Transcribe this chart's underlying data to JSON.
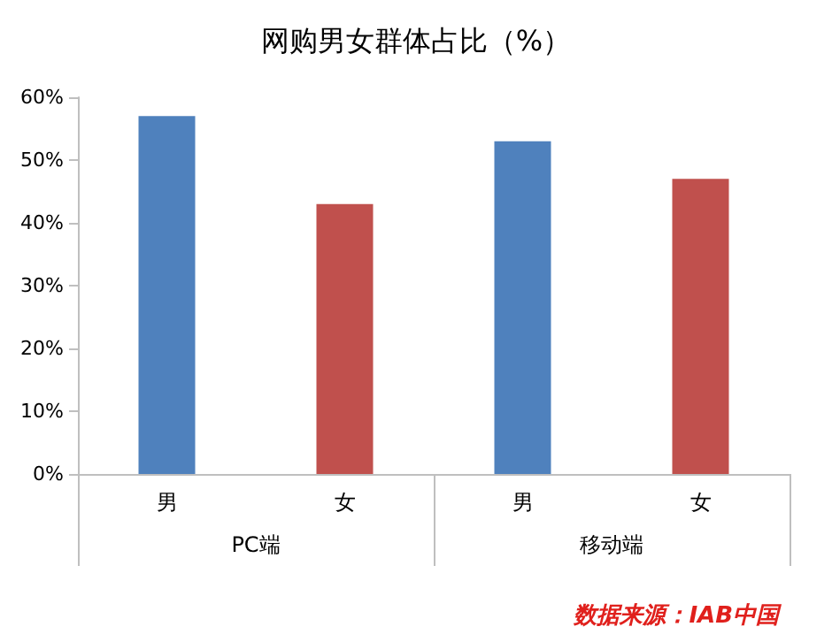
{
  "chart_data": {
    "type": "bar",
    "title": "网购男女群体占比（%）",
    "categories": [
      "男",
      "女",
      "男",
      "女"
    ],
    "values": [
      57,
      43,
      53,
      47
    ],
    "colors": [
      "#4f81bd",
      "#c0504d",
      "#4f81bd",
      "#c0504d"
    ],
    "ylim": [
      0,
      60
    ],
    "yticks": [
      {
        "value": 0,
        "label": "0%"
      },
      {
        "value": 10,
        "label": "10%"
      },
      {
        "value": 20,
        "label": "20%"
      },
      {
        "value": 30,
        "label": "30%"
      },
      {
        "value": 40,
        "label": "40%"
      },
      {
        "value": 50,
        "label": "50%"
      },
      {
        "value": 60,
        "label": "60%"
      }
    ],
    "annotations": [
      "PC端",
      "移动端",
      "数据来源：IAB中国"
    ]
  }
}
